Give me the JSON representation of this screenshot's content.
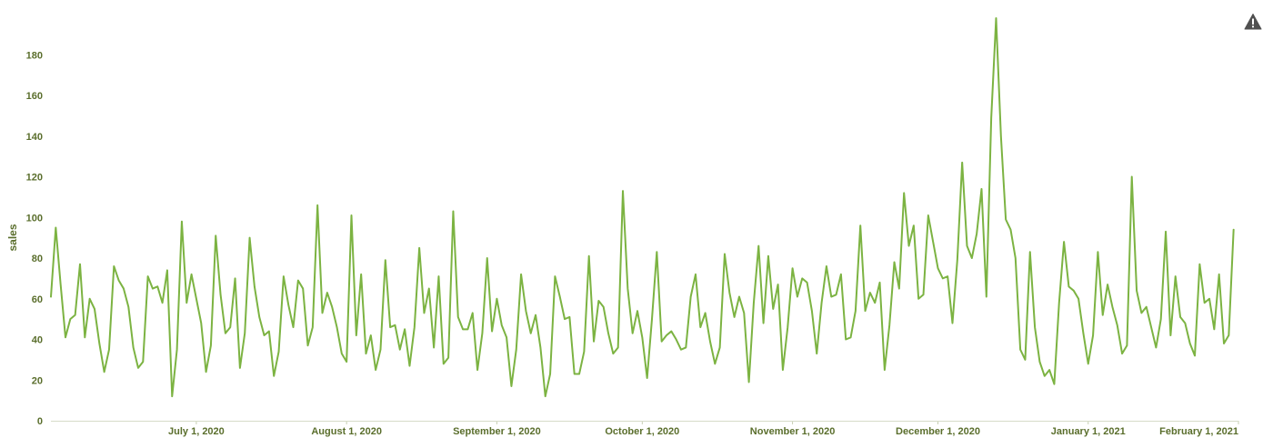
{
  "chart_data": {
    "type": "line",
    "ylabel": "sales",
    "xlabel": "",
    "ylim": [
      0,
      198
    ],
    "yticks": [
      0,
      20,
      40,
      60,
      80,
      100,
      120,
      140,
      160,
      180
    ],
    "grid": false,
    "x_start": "2020-06-01",
    "x_end": "2021-02-01",
    "xticks": [
      {
        "date": "2020-07-01",
        "label": "July 1, 2020"
      },
      {
        "date": "2020-08-01",
        "label": "August 1, 2020"
      },
      {
        "date": "2020-09-01",
        "label": "September 1, 2020"
      },
      {
        "date": "2020-10-01",
        "label": "October 1, 2020"
      },
      {
        "date": "2020-11-01",
        "label": "November 1, 2020"
      },
      {
        "date": "2020-12-01",
        "label": "December 1, 2020"
      },
      {
        "date": "2021-01-01",
        "label": "January 1, 2021"
      },
      {
        "date": "2021-02-01",
        "label": "February 1, 2021"
      }
    ],
    "series": [
      {
        "color": "#7cb342",
        "values": [
          61,
          95,
          67,
          41,
          50,
          52,
          77,
          41,
          60,
          55,
          38,
          24,
          35,
          76,
          69,
          65,
          56,
          36,
          26,
          29,
          71,
          65,
          66,
          58,
          74,
          12,
          35,
          98,
          58,
          72,
          60,
          48,
          24,
          37,
          91,
          62,
          43,
          46,
          70,
          26,
          43,
          90,
          66,
          51,
          42,
          44,
          22,
          34,
          71,
          57,
          46,
          69,
          65,
          37,
          46,
          106,
          53,
          63,
          56,
          46,
          33,
          29,
          101,
          42,
          72,
          33,
          42,
          25,
          35,
          79,
          46,
          47,
          35,
          45,
          27,
          46,
          85,
          53,
          65,
          36,
          71,
          28,
          31,
          103,
          51,
          45,
          45,
          53,
          25,
          43,
          80,
          44,
          60,
          47,
          41,
          17,
          35,
          72,
          54,
          43,
          52,
          36,
          12,
          23,
          71,
          61,
          50,
          51,
          23,
          23,
          34,
          81,
          39,
          59,
          56,
          43,
          33,
          36,
          113,
          65,
          43,
          54,
          41,
          21,
          50,
          83,
          39,
          42,
          44,
          40,
          35,
          36,
          61,
          72,
          46,
          53,
          39,
          28,
          36,
          82,
          63,
          51,
          61,
          53,
          19,
          58,
          86,
          48,
          81,
          55,
          67,
          25,
          46,
          75,
          61,
          70,
          68,
          54,
          33,
          58,
          76,
          61,
          62,
          72,
          40,
          41,
          54,
          96,
          54,
          63,
          58,
          68,
          25,
          47,
          78,
          65,
          112,
          86,
          96,
          60,
          62,
          101,
          88,
          75,
          70,
          71,
          48,
          79,
          127,
          86,
          80,
          92,
          114,
          61,
          149,
          198,
          140,
          99,
          94,
          80,
          35,
          30,
          83,
          46,
          29,
          22,
          25,
          18,
          58,
          88,
          66,
          64,
          60,
          43,
          28,
          42,
          83,
          52,
          67,
          56,
          47,
          33,
          37,
          120,
          64,
          53,
          56,
          46,
          36,
          50,
          93,
          42,
          71,
          51,
          48,
          38,
          32,
          77,
          58,
          60,
          45,
          72,
          38,
          42,
          94
        ]
      }
    ]
  },
  "icons": {
    "warning": "warning-icon"
  }
}
